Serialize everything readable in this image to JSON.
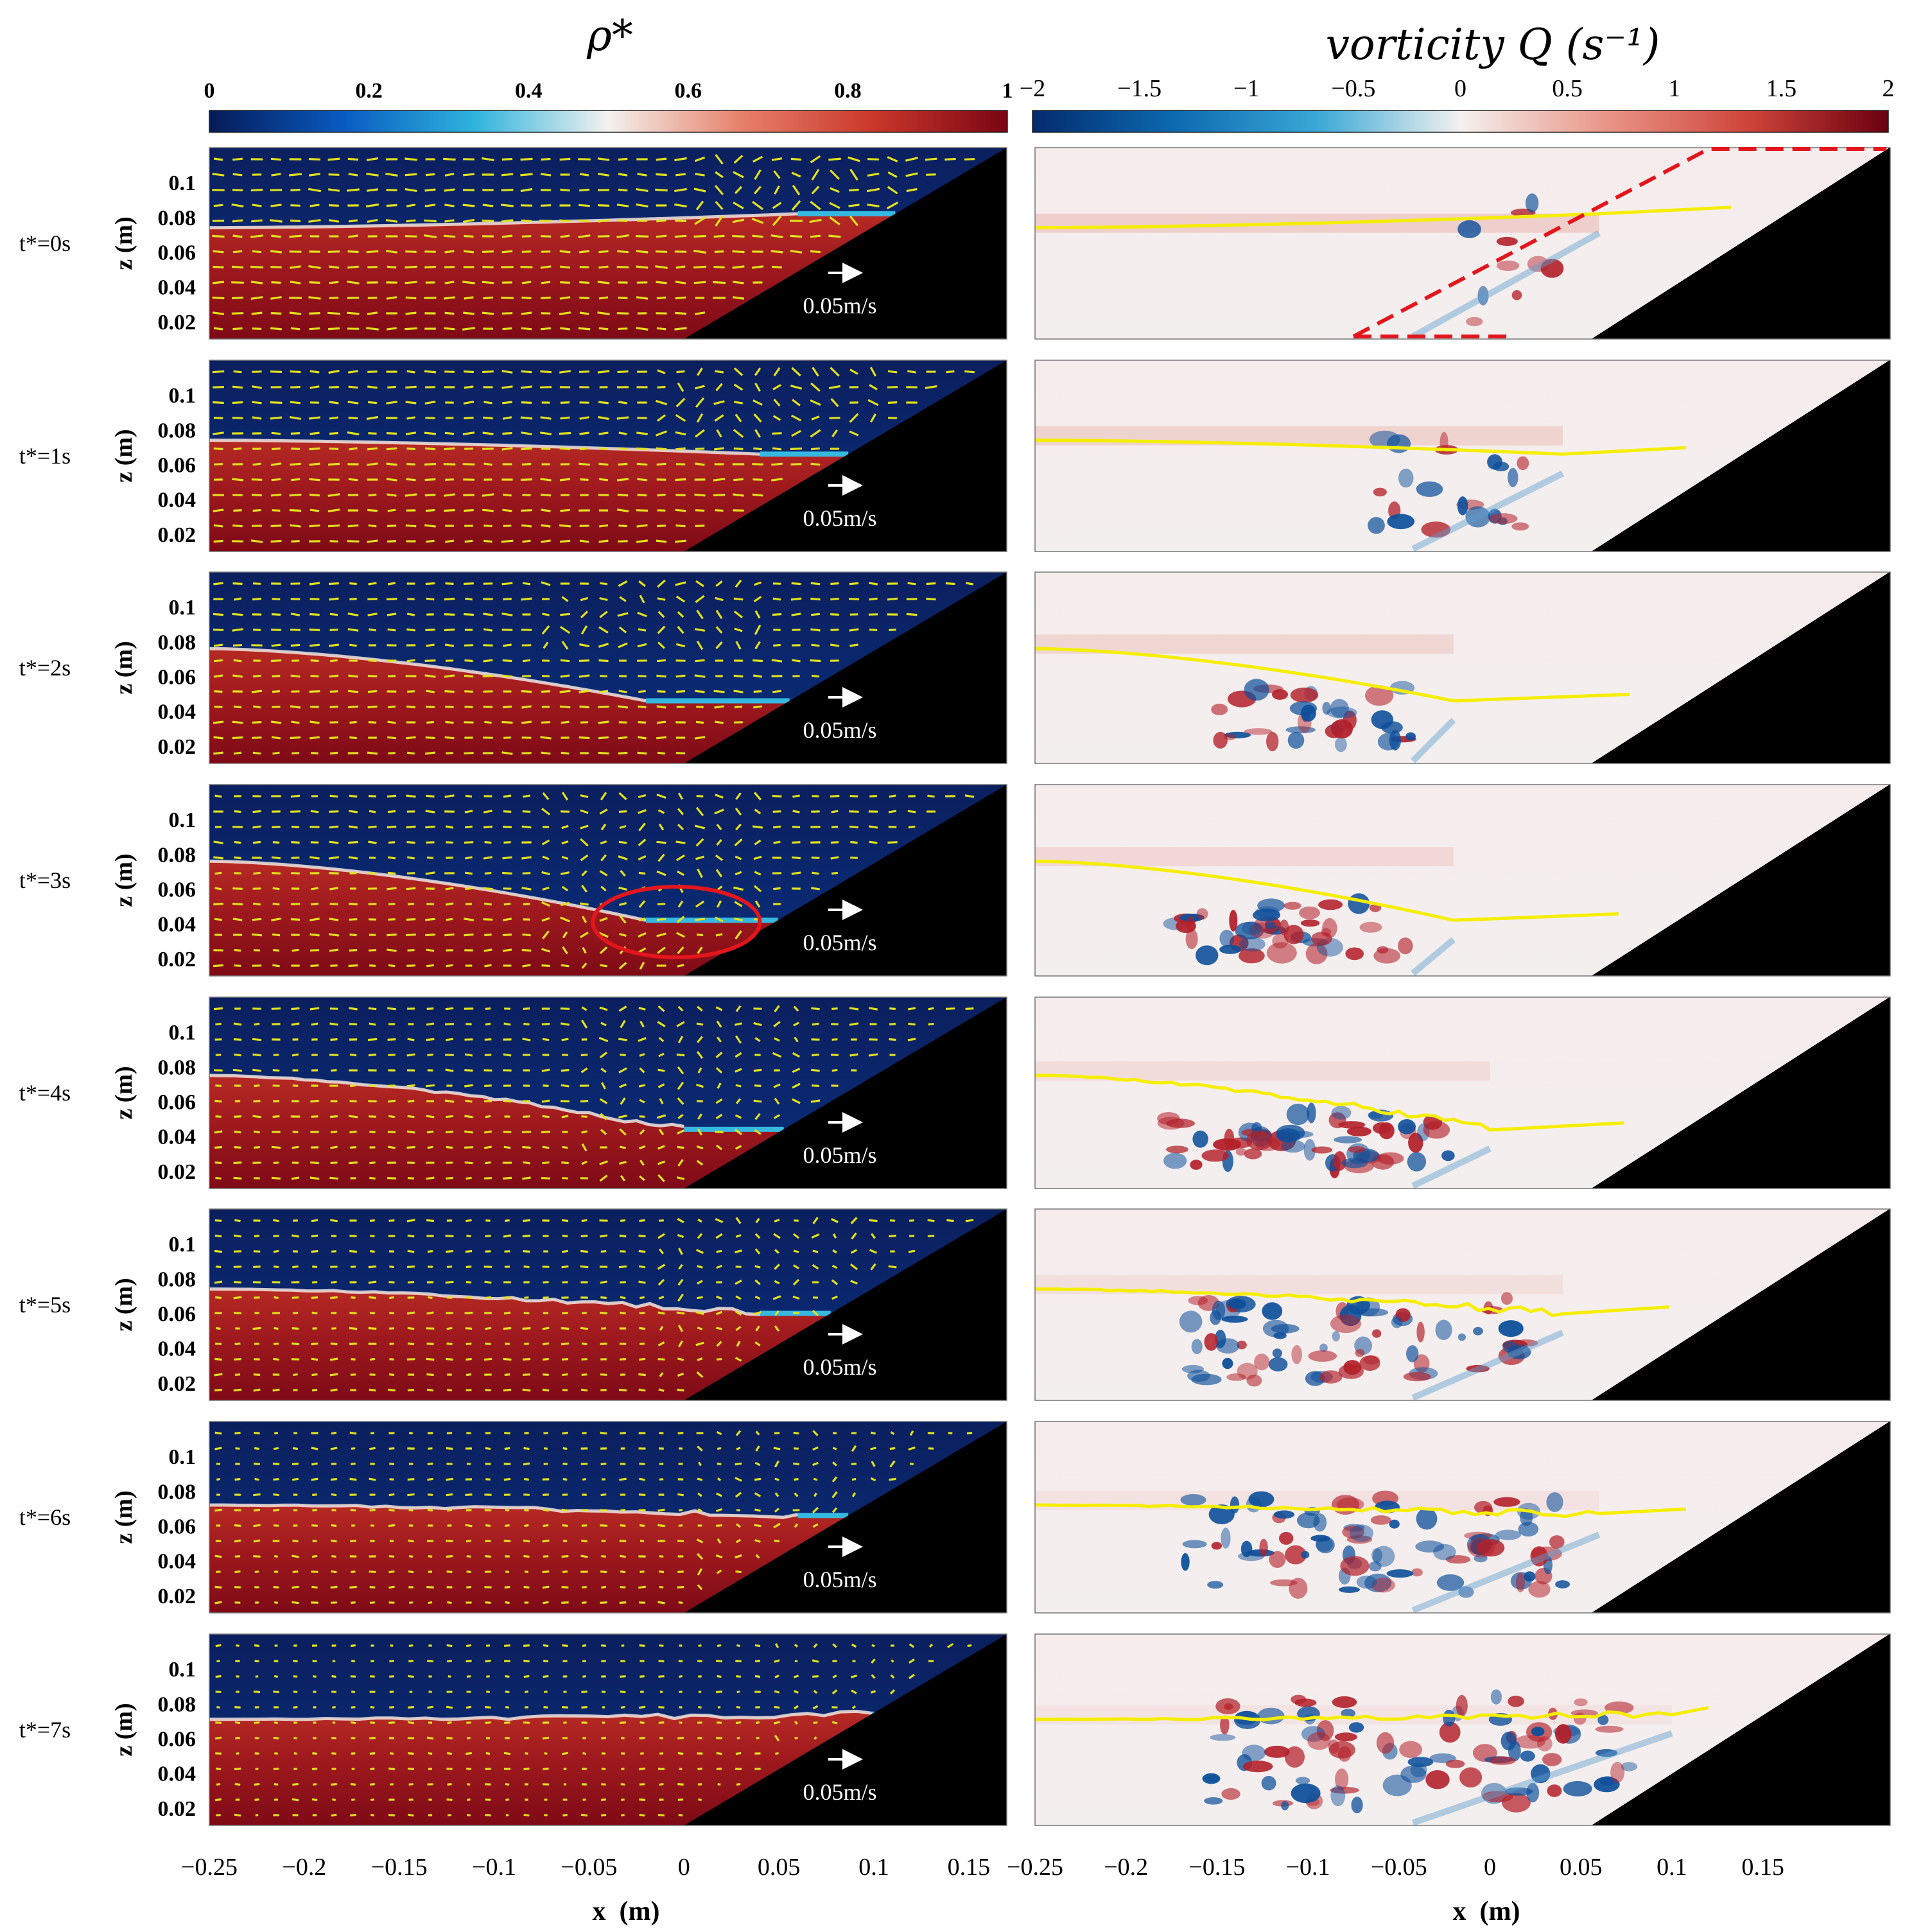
{
  "chart_data": [
    {
      "type": "heatmap",
      "title": "ρ*",
      "colorbar": {
        "range": [
          0,
          1
        ],
        "tick_labels": [
          "0",
          "0.2",
          "0.4",
          "0.6",
          "0.8",
          "1"
        ],
        "colors": [
          "#061a56",
          "#0a5ac0",
          "#2fb4dc",
          "#f4f1ef",
          "#e6806a",
          "#c9372a",
          "#7a0515"
        ]
      },
      "xlabel": "x  (m)",
      "ylabel": "z  (m)",
      "xlim": [
        -0.25,
        0.17
      ],
      "ylim": [
        0.01,
        0.12
      ],
      "x_tick_labels": [
        "−0.25",
        "−0.2",
        "−0.15",
        "−0.1",
        "−0.05",
        "0",
        "0.05",
        "0.1",
        "0.15"
      ],
      "y_tick_labels": [
        "0.02",
        "0.04",
        "0.06",
        "0.08",
        "0.1"
      ],
      "panel_labels": [
        "t*=0s",
        "t*=1s",
        "t*=2s",
        "t*=3s",
        "t*=4s",
        "t*=5s",
        "t*=6s",
        "t*=7s"
      ],
      "time_s": [
        0,
        1,
        2,
        3,
        4,
        5,
        6,
        7
      ],
      "interface_depth_m": [
        0.074,
        0.074,
        0.076,
        0.076,
        0.075,
        0.074,
        0.072,
        0.071
      ],
      "trough_x_m": [
        0.06,
        0.04,
        -0.02,
        -0.02,
        0.0,
        0.04,
        0.06,
        0.1
      ],
      "trough_z_m": [
        0.082,
        0.066,
        0.046,
        0.042,
        0.044,
        0.06,
        0.066,
        0.074
      ],
      "slope": {
        "x_start_m": 0.0,
        "z_start_m": 0.01,
        "x_end_m": 0.17,
        "z_end_m": 0.12
      },
      "vector_scale_label": "0.05m/s",
      "vector_scale_value_m_s": 0.05,
      "vector_color": "#e2e21c",
      "highlight": {
        "panel": "t*=3s",
        "center_x_m": -0.004,
        "center_z_m": 0.041,
        "shape": "ellipse",
        "color": "#e3161d"
      }
    },
    {
      "type": "heatmap",
      "title": "vorticity Q (s⁻¹)",
      "colorbar": {
        "range": [
          -2,
          2
        ],
        "tick_labels": [
          "−2",
          "−1.5",
          "−1",
          "−0.5",
          "0",
          "0.5",
          "1",
          "1.5",
          "2"
        ],
        "colors": [
          "#052a6e",
          "#0d6ab0",
          "#3aa8d6",
          "#f4f1ef",
          "#e9978a",
          "#d0463b",
          "#6a0010"
        ]
      },
      "xlabel": "x  (m)",
      "xlim": [
        -0.25,
        0.22
      ],
      "x_tick_labels": [
        "−0.25",
        "−0.2",
        "−0.15",
        "−0.1",
        "−0.05",
        "0",
        "0.05",
        "0.1",
        "0.15"
      ],
      "interface_contour_color": "#f5ee00",
      "dashed_region": {
        "panel": "t*=0s",
        "color": "#e3161d"
      }
    }
  ]
}
